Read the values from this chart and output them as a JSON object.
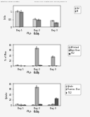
{
  "header_text": "Patent Application Publication",
  "page_info": "May 22, 2014   Sheet 13 of 13   US 2014/0141111 A1",
  "charts": [
    {
      "fig_label": "Fig.  13a",
      "ylabel": "Cells",
      "xlabel": "Group",
      "ylim": [
        0,
        1.4
      ],
      "yticks": [
        0,
        0.5,
        1.0
      ],
      "ytick_labels": [
        "0",
        "0.5",
        "1"
      ],
      "groups": [
        "Day 1",
        "Day 2",
        "Day 3"
      ],
      "series": [
        {
          "label": "Ctrl",
          "color": "#d4d4d4",
          "values": [
            1.05,
            0.52,
            0.42
          ]
        },
        {
          "label": "M",
          "color": "#888888",
          "values": [
            1.0,
            0.48,
            0.28
          ]
        }
      ],
      "error_bars": [
        [
          0.06,
          0.05,
          0.04
        ],
        [
          0.07,
          0.05,
          0.04
        ]
      ]
    },
    {
      "fig_label": "Fig.  13b",
      "ylabel": "% of Max",
      "xlabel": "Group",
      "ylim": [
        0,
        80
      ],
      "yticks": [
        0,
        20,
        40,
        60,
        80
      ],
      "ytick_labels": [
        "0",
        "20",
        "40",
        "60",
        "80"
      ],
      "groups": [
        "Day 1",
        "Day 2",
        "Day 3"
      ],
      "series": [
        {
          "label": "Pelletized",
          "color": "#eeeeee",
          "values": [
            3,
            2,
            2
          ]
        },
        {
          "label": "Rept. Dose",
          "color": "#aaaaaa",
          "values": [
            2,
            68,
            35
          ]
        },
        {
          "label": "TiO2",
          "color": "#555555",
          "values": [
            1.5,
            3,
            1.5
          ]
        }
      ],
      "error_bars": [
        [
          0.3,
          0.2,
          0.2
        ],
        [
          3,
          4,
          3
        ],
        [
          0.5,
          0.5,
          0.5
        ]
      ]
    },
    {
      "fig_label": "Fig.  13c",
      "ylabel": "Uptake",
      "xlabel": "Group",
      "ylim": [
        0,
        80
      ],
      "yticks": [
        0,
        20,
        40,
        60,
        80
      ],
      "ytick_labels": [
        "0",
        "20",
        "40",
        "60",
        "80"
      ],
      "groups": [
        "Day 1",
        "Day 2",
        "Day 3"
      ],
      "series": [
        {
          "label": "Uptake",
          "color": "#eeeeee",
          "values": [
            3,
            2,
            2
          ]
        },
        {
          "label": "Fluoresc. Blue",
          "color": "#aaaaaa",
          "values": [
            2,
            68,
            4
          ]
        },
        {
          "label": "TiO2",
          "color": "#555555",
          "values": [
            1.5,
            3,
            25
          ]
        }
      ],
      "error_bars": [
        [
          0.3,
          0.2,
          0.2
        ],
        [
          3,
          4,
          1
        ],
        [
          0.5,
          0.5,
          3
        ]
      ]
    }
  ],
  "bg_color": "#f5f5f5",
  "plot_bg": "#ffffff"
}
